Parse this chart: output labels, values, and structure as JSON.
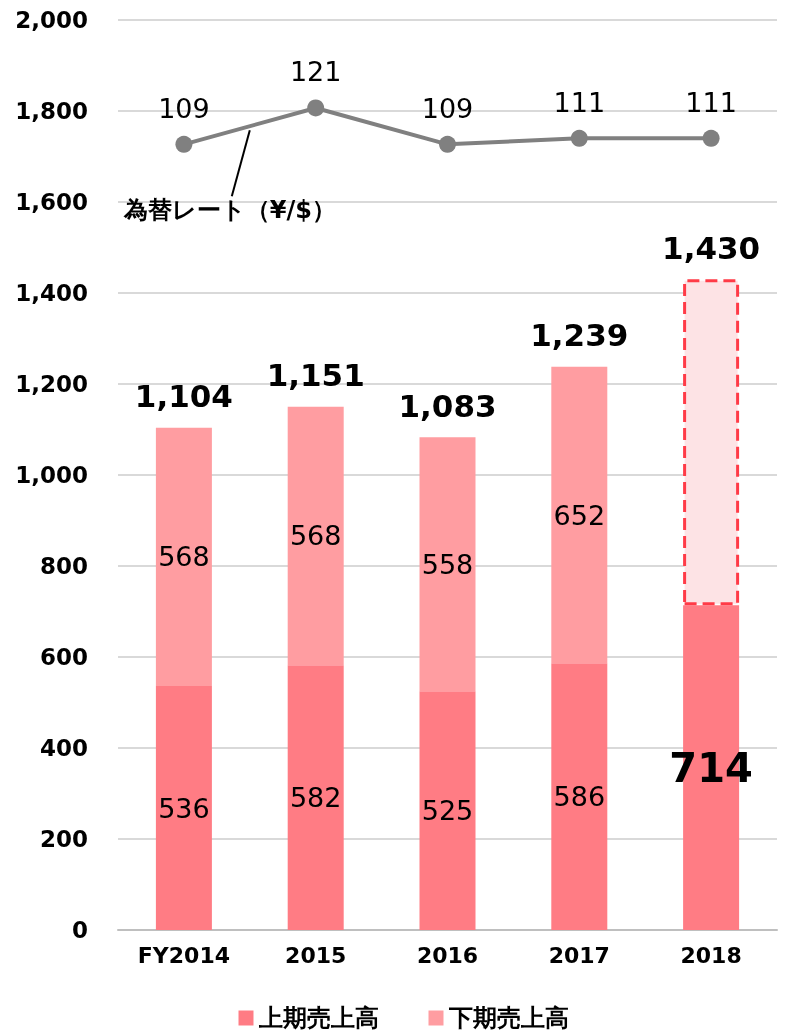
{
  "chart_data": {
    "type": "bar",
    "stacked": true,
    "categories": [
      "FY2014",
      "2015",
      "2016",
      "2017",
      "2018"
    ],
    "series": [
      {
        "name": "上期売上高",
        "color": "#ff7c84",
        "values": [
          536,
          582,
          525,
          586,
          714
        ],
        "value_labels": [
          "536",
          "582",
          "525",
          "586",
          "714"
        ]
      },
      {
        "name": "下期売上高",
        "color": "#ff9da1",
        "colors": [
          "#ff9da1",
          "#ff9da1",
          "#ff9da1",
          "#ff9da1",
          "#fde3e5"
        ],
        "values": [
          568,
          568,
          558,
          652,
          716
        ],
        "value_labels": [
          "568",
          "568",
          "558",
          "652",
          null
        ]
      },
      {
        "name": "為替レート（¥/$）",
        "type": "line",
        "axis": "y2",
        "color": "#808080",
        "values": [
          109,
          121,
          109,
          111,
          111
        ],
        "value_labels": [
          "109",
          "121",
          "109",
          "111",
          "111"
        ]
      }
    ],
    "totals": [
      "1,104",
      "1,151",
      "1,083",
      "1,239",
      "1,430"
    ],
    "ylim": [
      0,
      2000
    ],
    "yticks": [
      0,
      200,
      400,
      600,
      800,
      {
        "value": 1000,
        "label": "1,000"
      },
      {
        "value": 1200,
        "label": "1,200"
      },
      {
        "value": 1400,
        "label": "1,400"
      },
      {
        "value": 1600,
        "label": "1,600"
      },
      {
        "value": 1800,
        "label": "1,800"
      },
      {
        "value": 2000,
        "label": "2,000"
      }
    ],
    "y2lim": [
      -150,
      150
    ],
    "tick_labels": "xy",
    "grid": "y",
    "legend": "bottom",
    "marker": "circle",
    "line_style": "solid"
  }
}
